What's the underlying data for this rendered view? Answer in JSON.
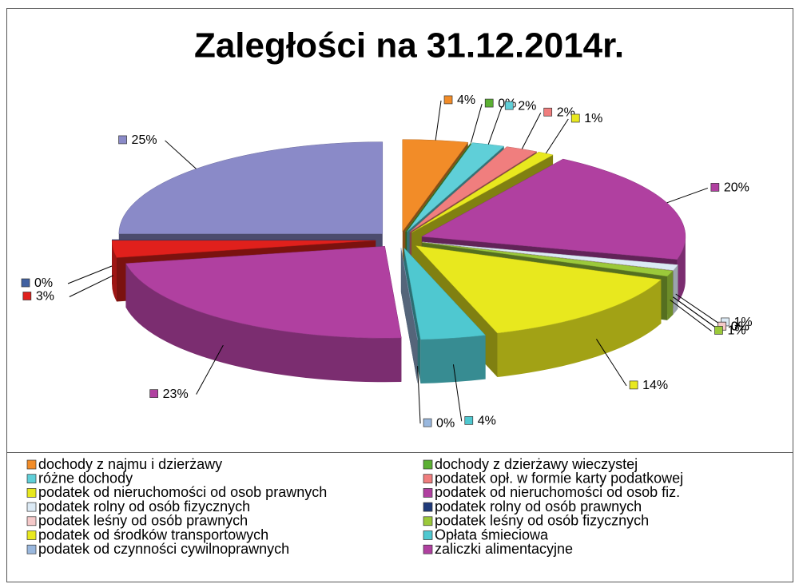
{
  "chart_data": {
    "type": "pie3d",
    "title": "Zaległości na 31.12.2014r.",
    "categories": [
      "dochody z najmu i dzierżawy",
      "dochody z dzierżawy wieczystej",
      "różne dochody",
      "podatek opł. w formie karty podatkowej",
      "podatek od nieruchomości od osob prawnych",
      "podatek od nieruchomości od osob fiz.",
      "podatek rolny od osób fizycznych",
      "podatek rolny od osób prawnych",
      "podatek leśny od osób prawnych",
      "podatek leśny od osób fizycznych",
      "podatek od środków transportowych",
      "Opłata śmieciowa",
      "podatek od czynności cywilnoprawnych",
      "zaliczki alimentacyjne",
      null,
      null,
      null
    ],
    "values": [
      4,
      0,
      2,
      2,
      1,
      20,
      1,
      0,
      0,
      1,
      14,
      4,
      0,
      23,
      3,
      0,
      25
    ],
    "value_labels": [
      "4%",
      "0%",
      "2%",
      "2%",
      "1%",
      "20%",
      "1%",
      "0%",
      "0%",
      "1%",
      "14%",
      "4%",
      "0%",
      "23%",
      "3%",
      "0%",
      "25%"
    ],
    "colors": [
      "#F28C28",
      "#5BB033",
      "#5FCFD8",
      "#F07E7E",
      "#E8E81E",
      "#B040A0",
      "#DCEAF5",
      "#1F3A7A",
      "#F5C9C9",
      "#9BC93A",
      "#E8E81E",
      "#4FC8D0",
      "#9AB8DE",
      "#B040A0",
      "#E0201C",
      "#4060A0",
      "#8A8AC8"
    ],
    "legend": "bottom"
  }
}
